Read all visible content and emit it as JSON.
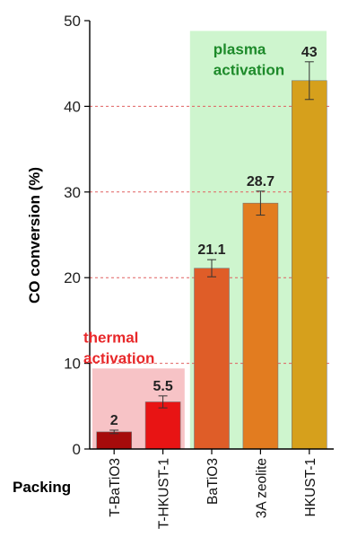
{
  "chart_data": {
    "type": "bar",
    "ylabel": "CO conversion (%)",
    "xlabel": "Packing",
    "ylim": [
      0,
      50
    ],
    "yticks": [
      "0",
      "10",
      "20",
      "30",
      "40",
      "50"
    ],
    "grid": "dashed horizontal at 10, 20, 30, 40",
    "categories": [
      "T-BaTiO3",
      "T-HKUST-1",
      "BaTiO3",
      "3A zeolite",
      "HKUST-1"
    ],
    "values": [
      2,
      5.5,
      21.1,
      28.7,
      43
    ],
    "value_labels": [
      "2",
      "5.5",
      "21.1",
      "28.7",
      "43"
    ],
    "error": [
      0.2,
      0.7,
      1.0,
      1.4,
      2.2
    ],
    "bar_colors": [
      "#a60b0b",
      "#e81414",
      "#df5d28",
      "#e27c20",
      "#d6a01c"
    ],
    "grid_color": "#e06060",
    "regions": [
      {
        "label_lines": [
          "thermal",
          "activation"
        ],
        "color": "#f7c3c6",
        "text_color": "#e8282a",
        "from_category": 0,
        "to_category": 1,
        "ymax": 9.4
      },
      {
        "label_lines": [
          "plasma",
          "activation"
        ],
        "color": "#cef5ce",
        "text_color": "#1d8a2a",
        "from_category": 2,
        "to_category": 4,
        "ymax": 48.8
      }
    ]
  }
}
